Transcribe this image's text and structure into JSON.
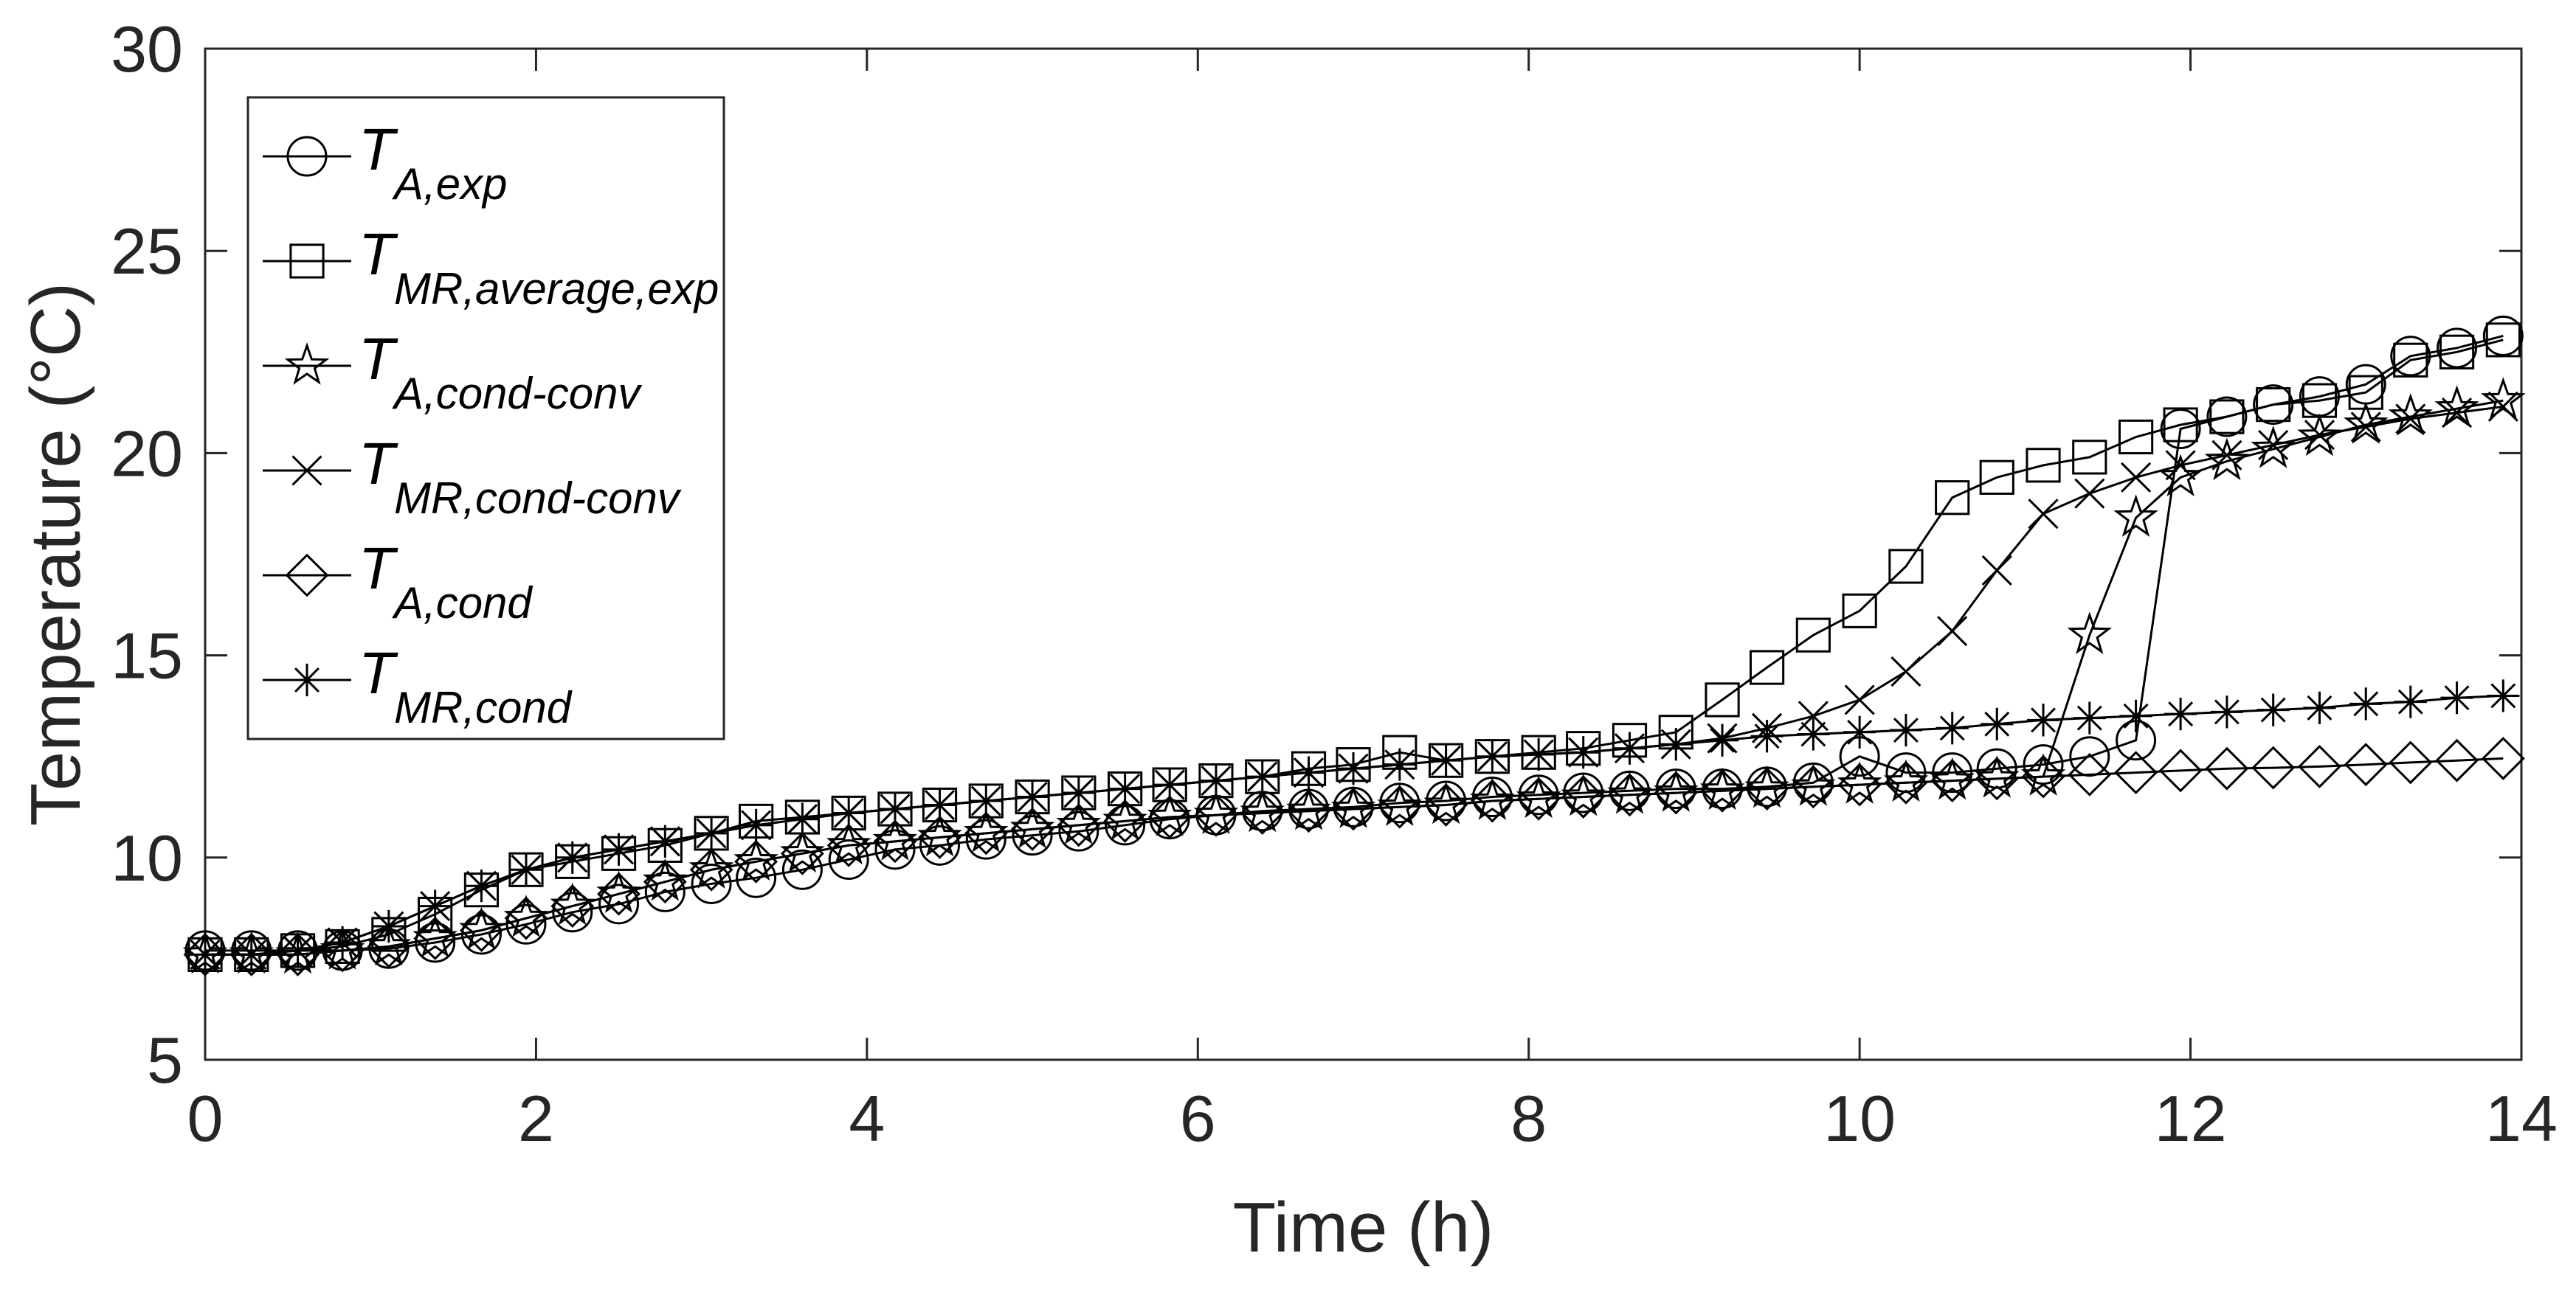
{
  "chart_data": {
    "type": "line",
    "title": "",
    "xlabel": "Time (h)",
    "ylabel": "Temperature (°C)",
    "xlim": [
      0,
      14
    ],
    "ylim": [
      5,
      30
    ],
    "xticks": [
      0,
      2,
      4,
      6,
      8,
      10,
      12,
      14
    ],
    "yticks": [
      5,
      10,
      15,
      20,
      25,
      30
    ],
    "grid": false,
    "legend_position": "top-left",
    "series": [
      {
        "name": "T_A,exp",
        "label_main": "T",
        "label_sub": "A,exp",
        "marker": "circle",
        "x": [
          0,
          0.28,
          0.56,
          0.83,
          1.11,
          1.39,
          1.67,
          1.94,
          2.22,
          2.5,
          2.78,
          3.06,
          3.33,
          3.61,
          3.89,
          4.17,
          4.44,
          4.72,
          5.0,
          5.28,
          5.56,
          5.83,
          6.11,
          6.39,
          6.67,
          6.94,
          7.22,
          7.5,
          7.78,
          8.06,
          8.33,
          8.61,
          8.89,
          9.17,
          9.44,
          9.72,
          10.0,
          10.28,
          10.56,
          10.83,
          11.11,
          11.39,
          11.67,
          11.94,
          12.22,
          12.5,
          12.78,
          13.06,
          13.33,
          13.61,
          13.89
        ],
        "y": [
          7.7,
          7.7,
          7.7,
          7.7,
          7.75,
          7.9,
          8.1,
          8.35,
          8.65,
          8.85,
          9.15,
          9.35,
          9.5,
          9.7,
          9.95,
          10.2,
          10.3,
          10.45,
          10.55,
          10.65,
          10.8,
          10.95,
          11.05,
          11.15,
          11.2,
          11.25,
          11.35,
          11.4,
          11.5,
          11.55,
          11.6,
          11.65,
          11.7,
          11.7,
          11.75,
          11.85,
          12.5,
          12.1,
          12.1,
          12.2,
          12.3,
          12.5,
          12.9,
          20.6,
          20.9,
          21.2,
          21.4,
          21.7,
          22.4,
          22.6,
          22.9
        ]
      },
      {
        "name": "T_MR,average,exp",
        "label_main": "T",
        "label_sub": "MR,average,exp",
        "marker": "square",
        "x": [
          0,
          0.28,
          0.56,
          0.83,
          1.11,
          1.39,
          1.67,
          1.94,
          2.22,
          2.5,
          2.78,
          3.06,
          3.33,
          3.61,
          3.89,
          4.17,
          4.44,
          4.72,
          5.0,
          5.28,
          5.56,
          5.83,
          6.11,
          6.39,
          6.67,
          6.94,
          7.22,
          7.5,
          7.78,
          8.06,
          8.33,
          8.61,
          8.89,
          9.17,
          9.44,
          9.72,
          10.0,
          10.28,
          10.56,
          10.83,
          11.11,
          11.39,
          11.67,
          11.94,
          12.22,
          12.5,
          12.78,
          13.06,
          13.33,
          13.61,
          13.89
        ],
        "y": [
          7.6,
          7.6,
          7.7,
          7.8,
          8.1,
          8.6,
          9.2,
          9.7,
          9.9,
          10.1,
          10.3,
          10.6,
          10.9,
          11.0,
          11.1,
          11.2,
          11.3,
          11.4,
          11.5,
          11.6,
          11.7,
          11.8,
          11.9,
          12.0,
          12.2,
          12.3,
          12.6,
          12.4,
          12.5,
          12.6,
          12.7,
          12.9,
          13.1,
          13.9,
          14.7,
          15.5,
          16.1,
          17.2,
          18.9,
          19.4,
          19.7,
          19.9,
          20.4,
          20.7,
          20.9,
          21.2,
          21.3,
          21.5,
          22.3,
          22.5,
          22.8
        ]
      },
      {
        "name": "T_A,cond-conv",
        "label_main": "T",
        "label_sub": "A,cond-conv",
        "marker": "star",
        "x": [
          0,
          0.28,
          0.56,
          0.83,
          1.11,
          1.39,
          1.67,
          1.94,
          2.22,
          2.5,
          2.78,
          3.06,
          3.33,
          3.61,
          3.89,
          4.17,
          4.44,
          4.72,
          5.0,
          5.28,
          5.56,
          5.83,
          6.11,
          6.39,
          6.67,
          6.94,
          7.22,
          7.5,
          7.78,
          8.06,
          8.33,
          8.61,
          8.89,
          9.17,
          9.44,
          9.72,
          10.0,
          10.28,
          10.56,
          10.83,
          11.11,
          11.39,
          11.67,
          11.94,
          12.22,
          12.5,
          12.78,
          13.06,
          13.33,
          13.61,
          13.89
        ],
        "y": [
          7.6,
          7.6,
          7.6,
          7.7,
          7.8,
          8.0,
          8.2,
          8.5,
          8.8,
          9.1,
          9.4,
          9.7,
          9.9,
          10.1,
          10.3,
          10.4,
          10.5,
          10.6,
          10.7,
          10.8,
          10.9,
          11.0,
          11.05,
          11.1,
          11.15,
          11.2,
          11.25,
          11.3,
          11.4,
          11.45,
          11.5,
          11.55,
          11.6,
          11.65,
          11.7,
          11.75,
          11.8,
          11.85,
          11.9,
          11.95,
          12.0,
          15.5,
          18.4,
          19.4,
          19.8,
          20.1,
          20.4,
          20.7,
          20.9,
          21.1,
          21.3
        ]
      },
      {
        "name": "T_MR,cond-conv",
        "label_main": "T",
        "label_sub": "MR,cond-conv",
        "marker": "x",
        "x": [
          0,
          0.28,
          0.56,
          0.83,
          1.11,
          1.39,
          1.67,
          1.94,
          2.22,
          2.5,
          2.78,
          3.06,
          3.33,
          3.61,
          3.89,
          4.17,
          4.44,
          4.72,
          5.0,
          5.28,
          5.56,
          5.83,
          6.11,
          6.39,
          6.67,
          6.94,
          7.22,
          7.5,
          7.78,
          8.06,
          8.33,
          8.61,
          8.89,
          9.17,
          9.44,
          9.72,
          10.0,
          10.28,
          10.56,
          10.83,
          11.11,
          11.39,
          11.67,
          11.94,
          12.22,
          12.5,
          12.78,
          13.06,
          13.33,
          13.61,
          13.89
        ],
        "y": [
          7.6,
          7.6,
          7.7,
          7.9,
          8.3,
          8.8,
          9.3,
          9.7,
          10.0,
          10.2,
          10.4,
          10.6,
          10.8,
          10.95,
          11.1,
          11.2,
          11.3,
          11.4,
          11.5,
          11.6,
          11.7,
          11.8,
          11.9,
          12.0,
          12.1,
          12.2,
          12.3,
          12.4,
          12.5,
          12.55,
          12.6,
          12.7,
          12.8,
          12.95,
          13.2,
          13.5,
          13.9,
          14.6,
          15.6,
          17.1,
          18.5,
          19.0,
          19.4,
          19.7,
          19.95,
          20.2,
          20.45,
          20.65,
          20.85,
          21.0,
          21.15
        ]
      },
      {
        "name": "T_A,cond",
        "label_main": "T",
        "label_sub": "A,cond",
        "marker": "diamond",
        "x": [
          0,
          0.28,
          0.56,
          0.83,
          1.11,
          1.39,
          1.67,
          1.94,
          2.22,
          2.5,
          2.78,
          3.06,
          3.33,
          3.61,
          3.89,
          4.17,
          4.44,
          4.72,
          5.0,
          5.28,
          5.56,
          5.83,
          6.11,
          6.39,
          6.67,
          6.94,
          7.22,
          7.5,
          7.78,
          8.06,
          8.33,
          8.61,
          8.89,
          9.17,
          9.44,
          9.72,
          10.0,
          10.28,
          10.56,
          10.83,
          11.11,
          11.39,
          11.67,
          11.94,
          12.22,
          12.5,
          12.78,
          13.06,
          13.33,
          13.61,
          13.89
        ],
        "y": [
          7.6,
          7.6,
          7.6,
          7.7,
          7.8,
          8.0,
          8.2,
          8.5,
          8.8,
          9.1,
          9.4,
          9.7,
          9.9,
          10.1,
          10.3,
          10.4,
          10.5,
          10.6,
          10.7,
          10.8,
          10.9,
          11.0,
          11.05,
          11.1,
          11.15,
          11.2,
          11.25,
          11.3,
          11.4,
          11.45,
          11.5,
          11.55,
          11.6,
          11.65,
          11.7,
          11.75,
          11.8,
          11.85,
          11.9,
          11.95,
          12.0,
          12.05,
          12.1,
          12.15,
          12.2,
          12.22,
          12.25,
          12.3,
          12.35,
          12.4,
          12.45
        ]
      },
      {
        "name": "T_MR,cond",
        "label_main": "T",
        "label_sub": "MR,cond",
        "marker": "asterisk",
        "x": [
          0,
          0.28,
          0.56,
          0.83,
          1.11,
          1.39,
          1.67,
          1.94,
          2.22,
          2.5,
          2.78,
          3.06,
          3.33,
          3.61,
          3.89,
          4.17,
          4.44,
          4.72,
          5.0,
          5.28,
          5.56,
          5.83,
          6.11,
          6.39,
          6.67,
          6.94,
          7.22,
          7.5,
          7.78,
          8.06,
          8.33,
          8.61,
          8.89,
          9.17,
          9.44,
          9.72,
          10.0,
          10.28,
          10.56,
          10.83,
          11.11,
          11.39,
          11.67,
          11.94,
          12.22,
          12.5,
          12.78,
          13.06,
          13.33,
          13.61,
          13.89
        ],
        "y": [
          7.6,
          7.6,
          7.7,
          7.9,
          8.3,
          8.8,
          9.3,
          9.7,
          10.0,
          10.2,
          10.4,
          10.6,
          10.8,
          10.95,
          11.1,
          11.2,
          11.3,
          11.4,
          11.5,
          11.6,
          11.7,
          11.8,
          11.9,
          12.0,
          12.1,
          12.2,
          12.3,
          12.4,
          12.5,
          12.55,
          12.6,
          12.7,
          12.8,
          12.9,
          13.0,
          13.05,
          13.1,
          13.15,
          13.2,
          13.3,
          13.4,
          13.45,
          13.5,
          13.55,
          13.6,
          13.65,
          13.7,
          13.8,
          13.85,
          13.95,
          14.0
        ]
      }
    ]
  }
}
